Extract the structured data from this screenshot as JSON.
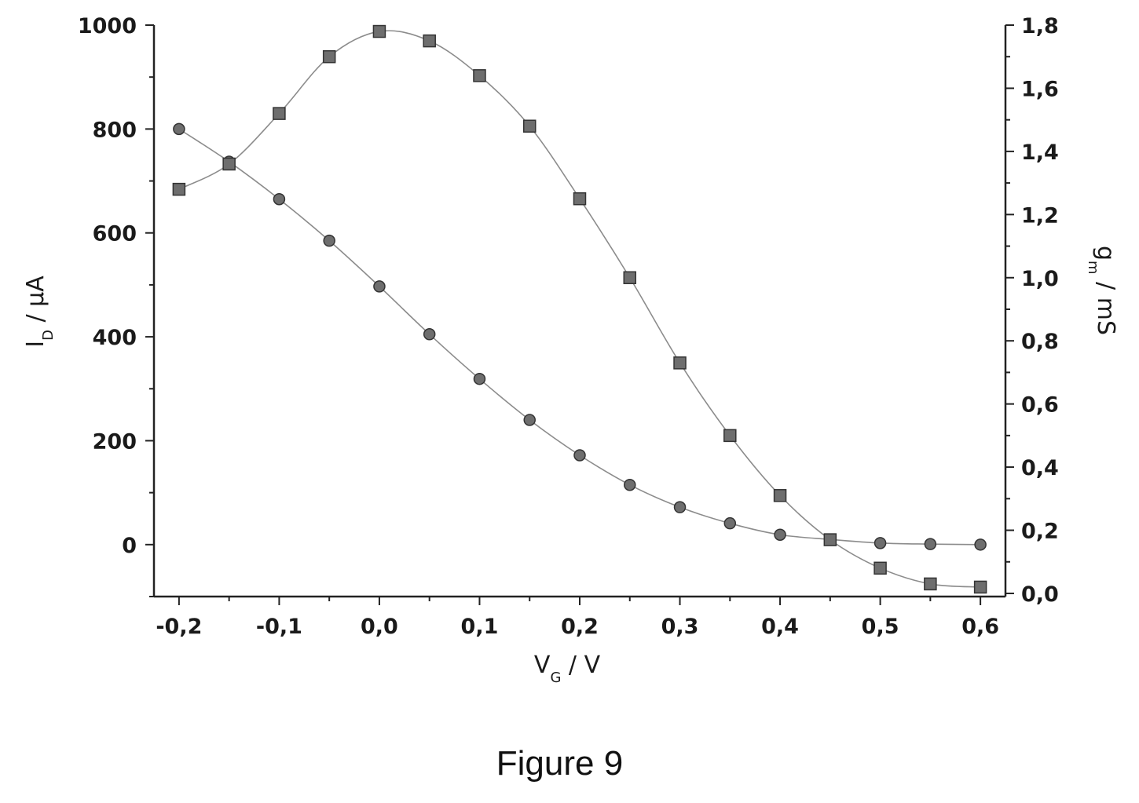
{
  "figure_caption": "Figure 9",
  "chart_data": {
    "type": "line",
    "x": [
      -0.2,
      -0.15,
      -0.1,
      -0.05,
      0.0,
      0.05,
      0.1,
      0.15,
      0.2,
      0.25,
      0.3,
      0.35,
      0.4,
      0.45,
      0.5,
      0.55,
      0.6
    ],
    "xlabel": {
      "main": "V",
      "sub": "G",
      "tail": " / V"
    },
    "ylabel_left": {
      "main": "I",
      "sub": "D",
      "tail": " / μA"
    },
    "ylabel_right": {
      "main": "g",
      "sub": "m",
      "tail": " / mS"
    },
    "xlim": [
      -0.225,
      0.625
    ],
    "ylim_left": [
      -100,
      1000
    ],
    "ylim_right": [
      -0.01,
      1.8
    ],
    "x_ticks": [
      -0.2,
      -0.1,
      0.0,
      0.1,
      0.2,
      0.3,
      0.4,
      0.5,
      0.6
    ],
    "x_tick_labels": [
      "-0,2",
      "-0,1",
      "0,0",
      "0,1",
      "0,2",
      "0,3",
      "0,4",
      "0,5",
      "0,6"
    ],
    "y_left_ticks": [
      0,
      200,
      400,
      600,
      800,
      1000
    ],
    "y_left_tick_labels": [
      "0",
      "200",
      "400",
      "600",
      "800",
      "1000"
    ],
    "y_right_ticks": [
      0.0,
      0.2,
      0.4,
      0.6,
      0.8,
      1.0,
      1.2,
      1.4,
      1.6,
      1.8
    ],
    "y_right_tick_labels": [
      "0,0",
      "0,2",
      "0,4",
      "0,6",
      "0,8",
      "1,0",
      "1,2",
      "1,4",
      "1,6",
      "1,8"
    ],
    "grid": false,
    "series": [
      {
        "marker": "circle",
        "axis": "left",
        "values": [
          800,
          737,
          665,
          585,
          497,
          405,
          319,
          240,
          172,
          115,
          72,
          41,
          19,
          10,
          3,
          1,
          0
        ]
      },
      {
        "marker": "square",
        "axis": "right",
        "values": [
          1.28,
          1.36,
          1.52,
          1.7,
          1.78,
          1.75,
          1.64,
          1.48,
          1.25,
          1.0,
          0.73,
          0.5,
          0.31,
          0.17,
          0.08,
          0.03,
          0.02
        ]
      }
    ],
    "colors": {
      "line": "#8c8c8c",
      "marker_fill": "#6e6e6e",
      "marker_stroke": "#333333",
      "axis": "#222222"
    }
  }
}
